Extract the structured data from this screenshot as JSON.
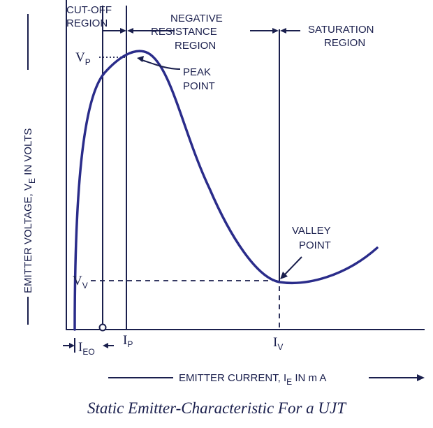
{
  "regions": {
    "cutoff_line1": "CUT-OFF",
    "cutoff_line2": "REGION",
    "negative_line1": "NEGATIVE",
    "negative_line2": "RESISTANCE",
    "negative_line3": "REGION",
    "saturation_line1": "SATURATION",
    "saturation_line2": "REGION"
  },
  "points": {
    "peak_line1": "PEAK",
    "peak_line2": "POINT",
    "valley_line1": "VALLEY",
    "valley_line2": "POINT"
  },
  "voltage_labels": {
    "vp_main": "V",
    "vp_sub": "P",
    "vv_main": "V",
    "vv_sub": "V"
  },
  "current_labels": {
    "ieo_main": "I",
    "ieo_sub": "EO",
    "ip_main": "I",
    "ip_sub": "P",
    "iv_main": "I",
    "iv_sub": "V"
  },
  "axes": {
    "y_prefix": "EMITTER VOLTAGE, V",
    "y_sub": "E",
    "y_suffix": " IN VOLTS",
    "x_prefix": "EMITTER CURRENT, I",
    "x_sub": "E",
    "x_suffix": " IN m A"
  },
  "caption": "Static Emitter-Characteristic For a UJT",
  "colors": {
    "ink": "#1a1f4d",
    "curve": "#2a2c8a",
    "background": "#ffffff"
  }
}
